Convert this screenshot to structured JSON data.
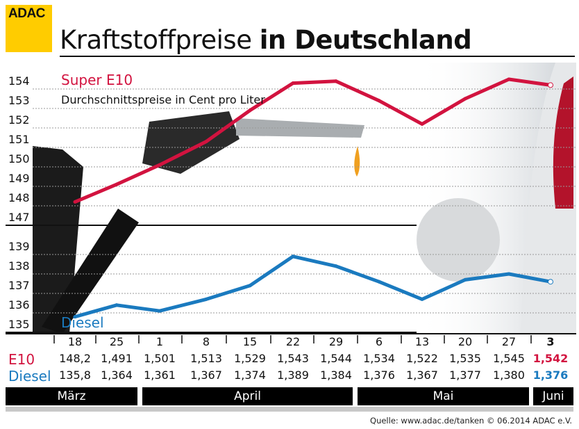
{
  "logo": "ADAC",
  "title": {
    "light": "Kraftstoffpreise",
    "bold": "in Deutschland"
  },
  "chart_data": {
    "type": "line",
    "title": "Kraftstoffpreise in Deutschland",
    "subtitle": "Durchschnittspreise in Cent pro Liter",
    "x": [
      "18",
      "25",
      "1",
      "8",
      "15",
      "22",
      "29",
      "6",
      "13",
      "20",
      "27",
      "3"
    ],
    "months": [
      {
        "label": "März",
        "span": [
          "18",
          "25"
        ]
      },
      {
        "label": "April",
        "span": [
          "1",
          "29"
        ]
      },
      {
        "label": "Mai",
        "span": [
          "6",
          "27"
        ]
      },
      {
        "label": "Juni",
        "span": [
          "3",
          "3"
        ]
      }
    ],
    "panels": [
      {
        "ylim": [
          147,
          154
        ],
        "yticks": [
          "147",
          "148",
          "149",
          "150",
          "151",
          "152",
          "153",
          "154"
        ]
      },
      {
        "ylim": [
          135,
          139
        ],
        "yticks": [
          "135",
          "136",
          "137",
          "138",
          "139"
        ]
      }
    ],
    "series": [
      {
        "name": "Super E10",
        "color": "#d2133f",
        "panel": 0,
        "values": [
          148.2,
          149.1,
          150.1,
          151.3,
          152.9,
          154.3,
          154.4,
          153.4,
          152.2,
          153.5,
          154.5,
          154.2
        ]
      },
      {
        "name": "Diesel",
        "color": "#1a7abf",
        "panel": 1,
        "values": [
          135.8,
          136.4,
          136.1,
          136.7,
          137.4,
          138.9,
          138.4,
          137.6,
          136.7,
          137.7,
          138.0,
          137.6
        ]
      }
    ],
    "grid": true
  },
  "table": {
    "e10_label": "E10",
    "diesel_label": "Diesel",
    "dates": [
      "18",
      "25",
      "1",
      "8",
      "15",
      "22",
      "29",
      "6",
      "13",
      "20",
      "27",
      "3"
    ],
    "e10": [
      "148,2",
      "1,491",
      "1,501",
      "1,513",
      "1,529",
      "1,543",
      "1,544",
      "1,534",
      "1,522",
      "1,535",
      "1,545",
      "1,542"
    ],
    "diesel": [
      "135,8",
      "1,364",
      "1,361",
      "1,367",
      "1,374",
      "1,389",
      "1,384",
      "1,376",
      "1,367",
      "1,377",
      "1,380",
      "1,376"
    ]
  },
  "months": [
    "März",
    "April",
    "Mai",
    "Juni"
  ],
  "footer": "Quelle: www.adac.de/tanken  © 06.2014  ADAC e.V."
}
